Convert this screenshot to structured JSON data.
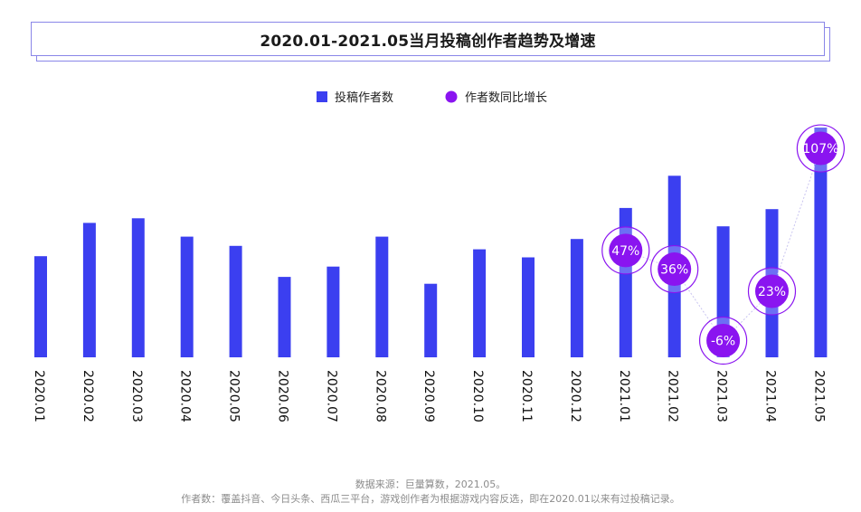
{
  "chart_data": {
    "type": "bar",
    "title": "2020.01-2021.05当月投稿创作者趋势及增速",
    "categories": [
      "2020.01",
      "2020.02",
      "2020.03",
      "2020.04",
      "2020.05",
      "2020.06",
      "2020.07",
      "2020.08",
      "2020.09",
      "2020.10",
      "2020.11",
      "2020.12",
      "2021.01",
      "2021.02",
      "2021.03",
      "2021.04",
      "2021.05"
    ],
    "series": [
      {
        "name": "投稿作者数",
        "color": "#3b3ff0",
        "values": [
          44,
          58.5,
          60.5,
          52.5,
          48.5,
          35,
          39.5,
          52.5,
          32,
          47,
          43.5,
          51.5,
          65,
          79,
          57,
          64.5,
          100
        ]
      },
      {
        "name": "作者数同比增长",
        "color": "#8a14f0",
        "points": [
          {
            "category": "2021.01",
            "value": 47,
            "label": "47%"
          },
          {
            "category": "2021.02",
            "value": 36,
            "label": "36%"
          },
          {
            "category": "2021.03",
            "value": -6,
            "label": "-6%"
          },
          {
            "category": "2021.04",
            "value": 23,
            "label": "23%"
          },
          {
            "category": "2021.05",
            "value": 107,
            "label": "107%"
          }
        ]
      }
    ],
    "legend_position": "top-center",
    "grid": false
  },
  "footer": {
    "source": "数据来源：巨量算数，2021.05。",
    "note": "作者数：覆盖抖音、今日头条、西瓜三平台，游戏创作者为根据游戏内容反选，即在2020.01以来有过投稿记录。"
  }
}
